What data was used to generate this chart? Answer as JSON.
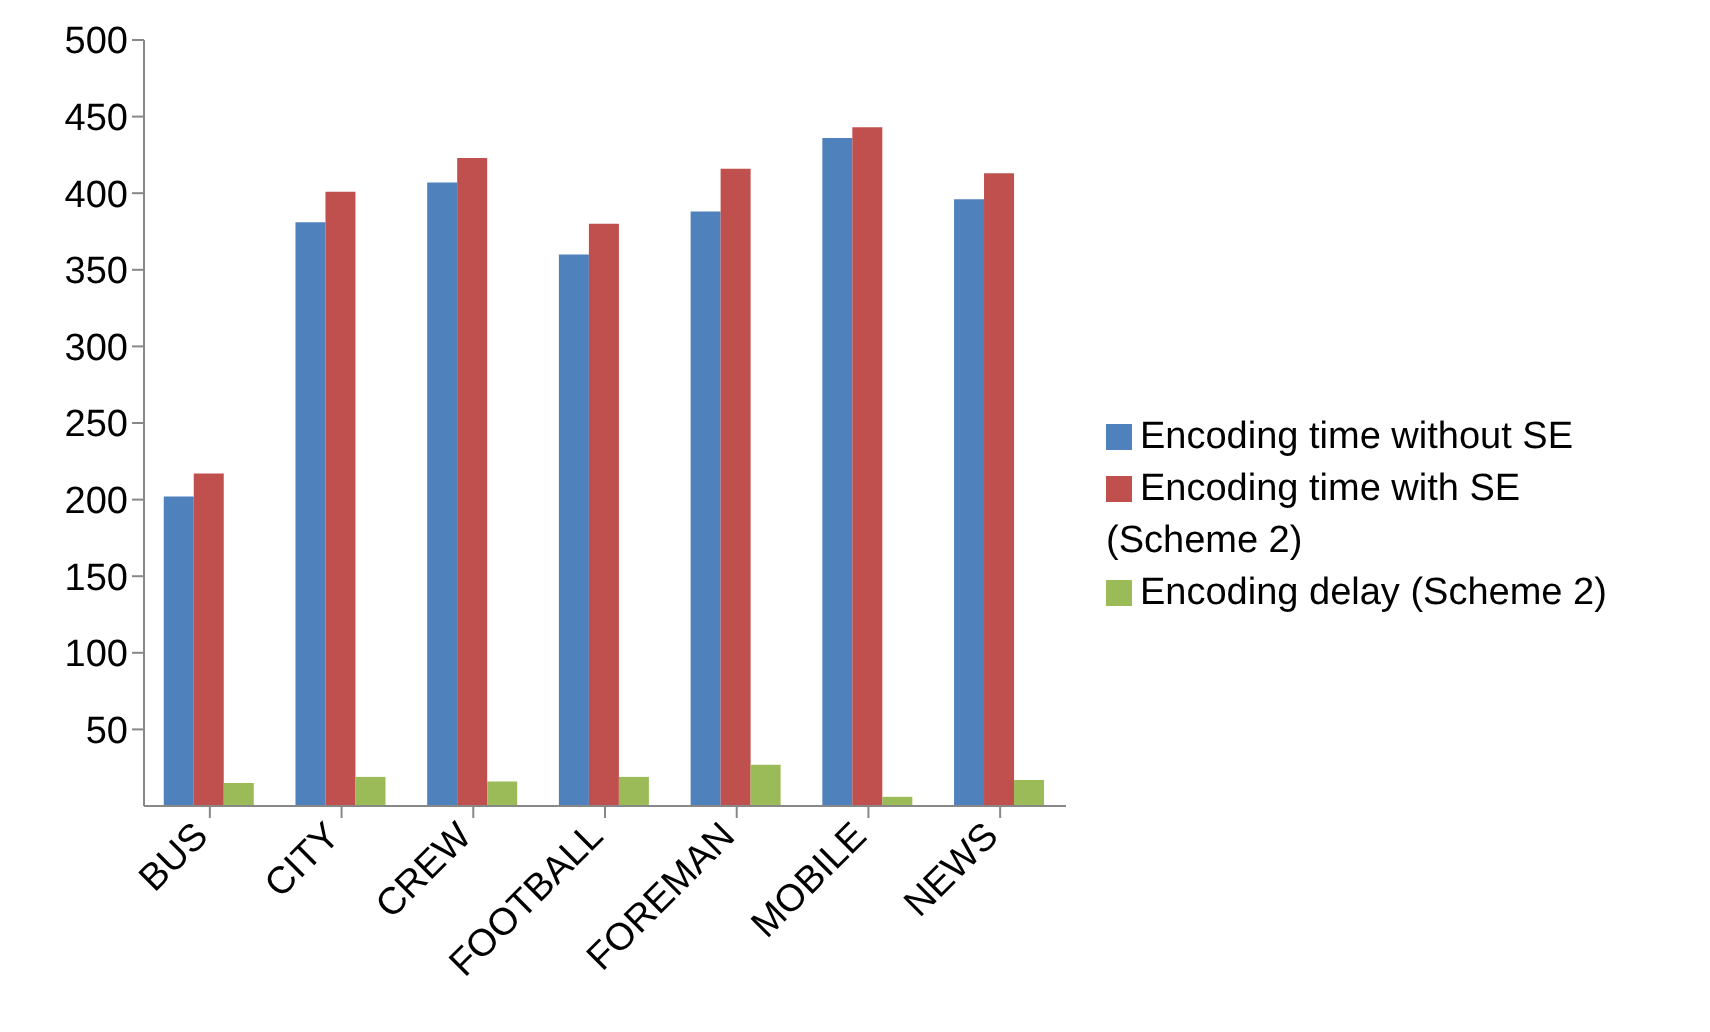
{
  "chart_data": {
    "type": "bar",
    "categories": [
      "BUS",
      "CITY",
      "CREW",
      "FOOTBALL",
      "FOREMAN",
      "MOBILE",
      "NEWS"
    ],
    "series": [
      {
        "name": "Encoding time without SE",
        "color": "#4f81bd",
        "values": [
          202,
          381,
          407,
          360,
          388,
          436,
          396
        ]
      },
      {
        "name": "Encoding time with SE (Scheme 2)",
        "color": "#c0504d",
        "values": [
          217,
          401,
          423,
          380,
          416,
          443,
          413
        ]
      },
      {
        "name": "Encoding delay (Scheme 2)",
        "color": "#9bbb59",
        "values": [
          15,
          19,
          16,
          19,
          27,
          6,
          17
        ]
      }
    ],
    "ylim": [
      0,
      500
    ],
    "yticks": [
      50,
      100,
      150,
      200,
      250,
      300,
      350,
      400,
      450,
      500
    ],
    "grid": false,
    "legend": "right"
  }
}
